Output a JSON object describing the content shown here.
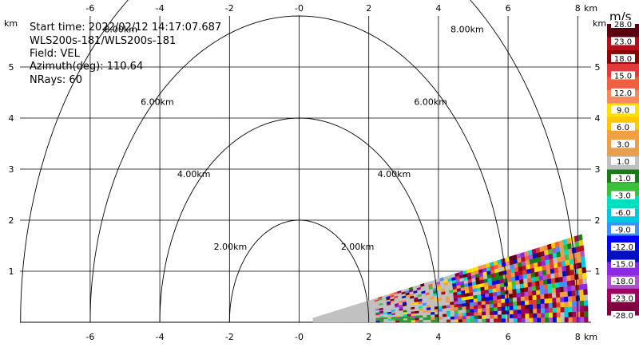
{
  "info": {
    "start_time": "Start time: 2022/02/12 14:17:07.687",
    "site": "WLS200s-181/WLS200s-181",
    "field": "Field: VEL",
    "azimuth": "Azimuth(deg): 110.64",
    "nrays": "NRays: 60"
  },
  "axis_unit": "km",
  "colorbar": {
    "unit": "m/s",
    "labels": [
      "28.0",
      "23.0",
      "18.0",
      "15.0",
      "12.0",
      "9.0",
      "6.0",
      "3.0",
      "1.0",
      "-1.0",
      "-3.0",
      "-6.0",
      "-9.0",
      "-12.0",
      "-15.0",
      "-18.0",
      "-23.0",
      "-28.0"
    ],
    "colors": [
      "#5a0010",
      "#b0101c",
      "#8a0000",
      "#e03a3a",
      "#f06040",
      "#f58a60",
      "#ffe000",
      "#ffc800",
      "#f0a040",
      "#e8a050",
      "#c0c0c0",
      "#1a7a1a",
      "#3cc03c",
      "#00e0c0",
      "#00c8e0",
      "#4090ff",
      "#0000ff",
      "#0010c0",
      "#8a2be2",
      "#b050d0",
      "#a00060",
      "#800040"
    ]
  },
  "chart_data": {
    "type": "heatmap",
    "plot_kind": "RHI / sector scan, radial velocity",
    "x_ticks": [
      -6,
      -4,
      -2,
      0,
      2,
      4,
      6,
      8
    ],
    "x_tick_labels": [
      "-6",
      "-4",
      "-2",
      "-0",
      "2",
      "4",
      "6",
      "8"
    ],
    "y_ticks": [
      1,
      2,
      3,
      4,
      5
    ],
    "xlim": [
      -8.6,
      8.3
    ],
    "ylim": [
      0,
      6.0
    ],
    "range_rings_km": [
      2,
      4,
      6,
      8
    ],
    "ring_labels": [
      "2.00km",
      "4.00km",
      "6.00km",
      "8.00km"
    ],
    "sector": {
      "range_km": [
        0.4,
        8.3
      ],
      "elevation_deg": [
        0,
        12
      ]
    },
    "grid": true
  }
}
